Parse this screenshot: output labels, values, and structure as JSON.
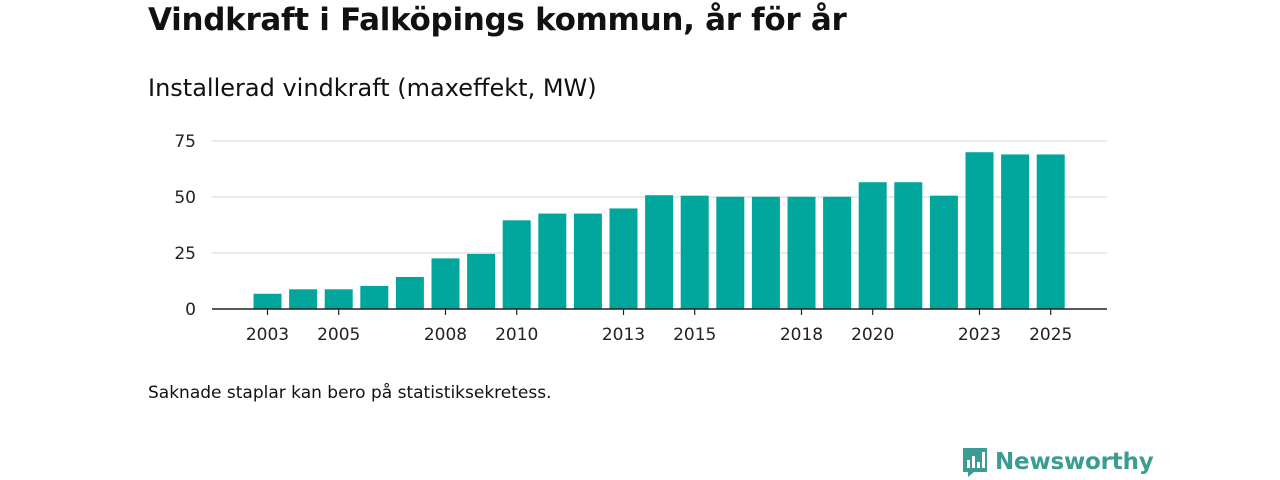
{
  "chart_data": {
    "type": "bar",
    "title": "Vindkraft i Falköpings kommun, år för år",
    "subtitle": "Installerad vindkraft (maxeffekt, MW)",
    "categories": [
      "2003",
      "2004",
      "2005",
      "2006",
      "2007",
      "2008",
      "2009",
      "2010",
      "2011",
      "2012",
      "2013",
      "2014",
      "2015",
      "2016",
      "2017",
      "2018",
      "2019",
      "2020",
      "2021",
      "2022",
      "2023",
      "2024",
      "2025"
    ],
    "values": [
      6.8,
      8.8,
      8.8,
      10.3,
      14.3,
      22.6,
      24.6,
      39.6,
      42.6,
      42.6,
      44.9,
      50.8,
      50.6,
      50.1,
      50.1,
      50.1,
      50.1,
      56.6,
      56.6,
      50.6,
      70.0,
      69.0,
      69.0
    ],
    "x_tick_labels": [
      "2003",
      "2005",
      "2008",
      "2010",
      "2013",
      "2015",
      "2018",
      "2020",
      "2023",
      "2025"
    ],
    "y_ticks": [
      0,
      25,
      50,
      75
    ],
    "ylim": [
      0,
      75
    ],
    "xlabel": "",
    "ylabel": "",
    "bar_color": "#00a69c",
    "gridlines": true
  },
  "footnote": "Saknade staplar kan bero på statistiksekretess.",
  "brand": {
    "name": "Newsworthy",
    "color": "#3a9c92",
    "icon": "newsworthy-logo-icon"
  }
}
